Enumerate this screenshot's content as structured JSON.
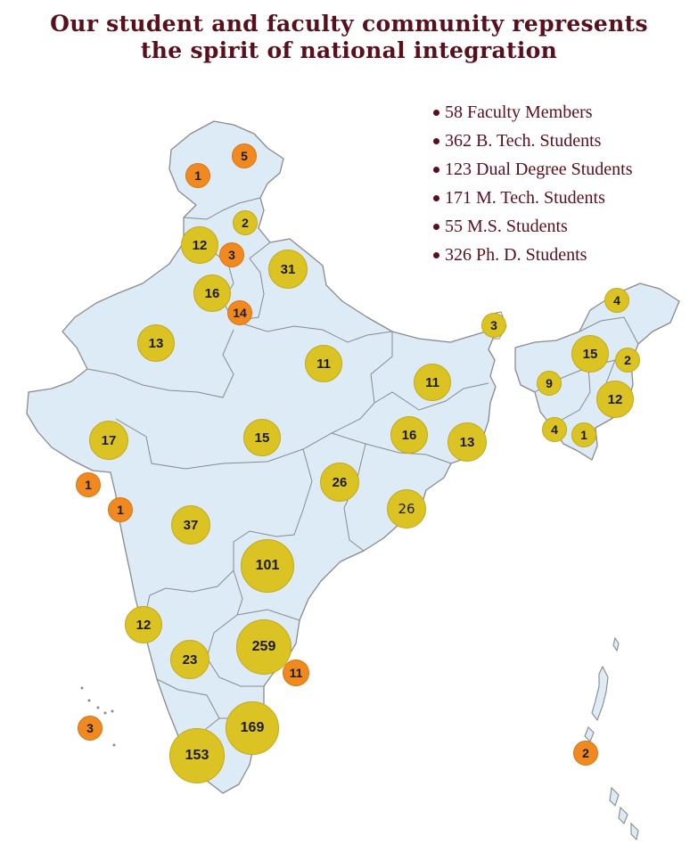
{
  "title": {
    "line1": "Our student and faculty community represents",
    "line2": "the spirit of national integration"
  },
  "legend": [
    "58 Faculty Members",
    "362 B. Tech. Students",
    "123 Dual Degree Students",
    "171 M. Tech. Students",
    "55 M.S. Students",
    "326 Ph. D. Students"
  ],
  "colors": {
    "title": "#5a0f1c",
    "land": "#dcebf6",
    "border": "#8a8a8a",
    "student_bubble": "#dcc324",
    "faculty_bubble": "#f08a20"
  },
  "bubbles": {
    "jk_a": "5",
    "jk_b": "1",
    "himachal": "2",
    "punjab": "12",
    "chandigarh": "3",
    "uttarakhand": "31",
    "haryana": "16",
    "delhi": "14",
    "rajasthan": "13",
    "uttar_pradesh": "11",
    "bihar": "11",
    "sikkim": "3",
    "arunachal": "4",
    "assam": "15",
    "nagaland": "2",
    "meghalaya": "9",
    "manipur": "12",
    "tripura": "4",
    "mizoram": "1",
    "gujarat": "17",
    "madhya_pradesh": "15",
    "jharkhand": "16",
    "west_bengal": "13",
    "diu": "1",
    "daman": "1",
    "chhattisgarh": "26",
    "odisha": "26",
    "maharashtra": "37",
    "telangana": "101",
    "goa": "12",
    "karnataka": "23",
    "andhra_pradesh": "259",
    "puducherry": "11",
    "lakshadweep": "3",
    "andaman": "2",
    "tamil_nadu": "169",
    "kerala": "153"
  }
}
